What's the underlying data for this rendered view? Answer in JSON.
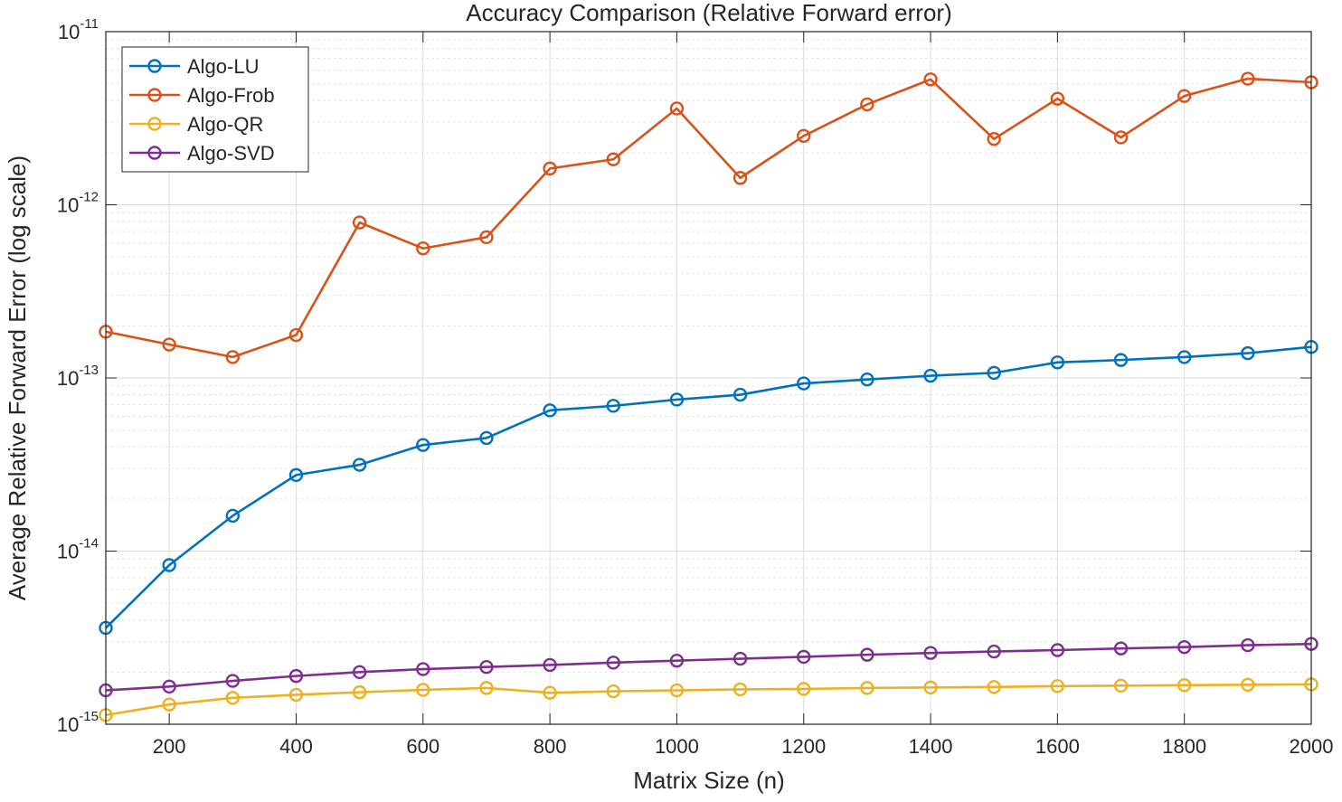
{
  "chart_data": {
    "type": "line",
    "title": "Accuracy Comparison (Relative Forward error)",
    "xlabel": "Matrix Size (n)",
    "ylabel": "Average Relative Forward Error (log scale)",
    "xlim": [
      100,
      2000
    ],
    "ylim": [
      1e-15,
      1e-11
    ],
    "yscale": "log",
    "grid": true,
    "legend_position": "top-left",
    "x_ticks": [
      200,
      400,
      600,
      800,
      1000,
      1200,
      1400,
      1600,
      1800,
      2000
    ],
    "y_ticks": [
      {
        "value": 1e-15,
        "base": "10",
        "exp": "-15"
      },
      {
        "value": 1e-14,
        "base": "10",
        "exp": "-14"
      },
      {
        "value": 1e-13,
        "base": "10",
        "exp": "-13"
      },
      {
        "value": 1e-12,
        "base": "10",
        "exp": "-12"
      },
      {
        "value": 1e-11,
        "base": "10",
        "exp": "-11"
      }
    ],
    "x": [
      100,
      200,
      300,
      400,
      500,
      600,
      700,
      800,
      900,
      1000,
      1100,
      1200,
      1300,
      1400,
      1500,
      1600,
      1700,
      1800,
      1900,
      2000
    ],
    "series": [
      {
        "name": "Algo-LU",
        "color": "#0072BD",
        "values": [
          3.6e-15,
          8.3e-15,
          1.6e-14,
          2.75e-14,
          3.15e-14,
          4.1e-14,
          4.5e-14,
          6.5e-14,
          6.9e-14,
          7.5e-14,
          8e-14,
          9.3e-14,
          9.8e-14,
          1.03e-13,
          1.07e-13,
          1.23e-13,
          1.27e-13,
          1.32e-13,
          1.39e-13,
          1.51e-13
        ]
      },
      {
        "name": "Algo-Frob",
        "color": "#D95319",
        "values": [
          1.85e-13,
          1.56e-13,
          1.32e-13,
          1.77e-13,
          7.9e-13,
          5.6e-13,
          6.5e-13,
          1.62e-12,
          1.83e-12,
          3.6e-12,
          1.43e-12,
          2.5e-12,
          3.8e-12,
          5.3e-12,
          2.4e-12,
          4.1e-12,
          2.45e-12,
          4.25e-12,
          5.35e-12,
          5.1e-12
        ]
      },
      {
        "name": "Algo-QR",
        "color": "#EDB120",
        "values": [
          1.13e-15,
          1.3e-15,
          1.42e-15,
          1.48e-15,
          1.53e-15,
          1.58e-15,
          1.62e-15,
          1.52e-15,
          1.55e-15,
          1.57e-15,
          1.59e-15,
          1.6e-15,
          1.62e-15,
          1.63e-15,
          1.64e-15,
          1.66e-15,
          1.67e-15,
          1.68e-15,
          1.69e-15,
          1.7e-15
        ]
      },
      {
        "name": "Algo-SVD",
        "color": "#7E2F8E",
        "values": [
          1.57e-15,
          1.65e-15,
          1.78e-15,
          1.9e-15,
          2e-15,
          2.08e-15,
          2.14e-15,
          2.2e-15,
          2.27e-15,
          2.33e-15,
          2.39e-15,
          2.45e-15,
          2.52e-15,
          2.58e-15,
          2.63e-15,
          2.68e-15,
          2.74e-15,
          2.79e-15,
          2.86e-15,
          2.91e-15
        ]
      }
    ]
  }
}
